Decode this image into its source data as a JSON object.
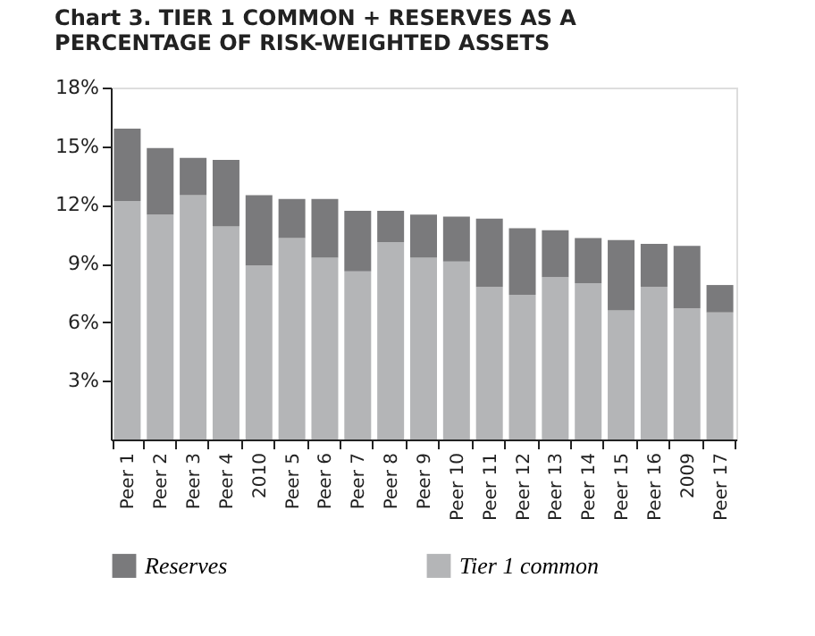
{
  "chart_data": {
    "type": "bar",
    "stacked": true,
    "title": "Chart 3. TIER 1 COMMON + RESERVES AS A PERCENTAGE OF RISK-WEIGHTED ASSETS",
    "categories": [
      "Peer 1",
      "Peer 2",
      "Peer 3",
      "Peer 4",
      "2010",
      "Peer 5",
      "Peer 6",
      "Peer 7",
      "Peer 8",
      "Peer 9",
      "Peer 10",
      "Peer 11",
      "Peer 12",
      "Peer 13",
      "Peer 14",
      "Peer 15",
      "Peer 16",
      "2009",
      "Peer 17"
    ],
    "series": [
      {
        "name": "Tier 1 common",
        "color": "#b4b5b7",
        "values": [
          12.2,
          11.5,
          12.5,
          10.9,
          8.9,
          10.3,
          9.3,
          8.6,
          10.1,
          9.3,
          9.1,
          7.8,
          7.4,
          8.3,
          8.0,
          6.6,
          7.8,
          6.7,
          6.5
        ]
      },
      {
        "name": "Reserves",
        "color": "#7a7a7c",
        "values": [
          3.7,
          3.4,
          1.9,
          3.4,
          3.6,
          2.0,
          3.0,
          3.1,
          1.6,
          2.2,
          2.3,
          3.5,
          3.4,
          2.4,
          2.3,
          3.6,
          2.2,
          3.2,
          1.4
        ]
      }
    ],
    "ylim": [
      0,
      18
    ],
    "yticks": [
      {
        "value": 3,
        "label": "3%"
      },
      {
        "value": 6,
        "label": "6%"
      },
      {
        "value": 9,
        "label": "9%"
      },
      {
        "value": 12,
        "label": "12%"
      },
      {
        "value": 15,
        "label": "15%"
      },
      {
        "value": 18,
        "label": "18%"
      }
    ],
    "grid": false,
    "legend": "bottom"
  }
}
